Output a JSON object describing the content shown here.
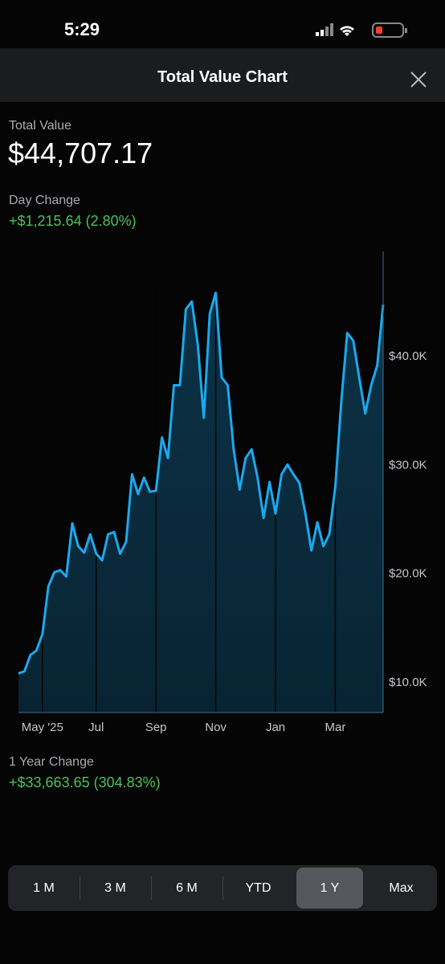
{
  "status_bar": {
    "time": "5:29"
  },
  "header": {
    "title": "Total Value Chart"
  },
  "summary": {
    "total_label": "Total Value",
    "total_value": "$44,707.17",
    "day_label": "Day Change",
    "day_change": "+$1,215.64 (2.80%)"
  },
  "chart_data": {
    "type": "area",
    "color": "#1ba9ee",
    "values": [
      10800,
      11000,
      12500,
      12900,
      14400,
      18800,
      20100,
      20300,
      19700,
      24600,
      22500,
      21900,
      23600,
      21800,
      21200,
      23600,
      23800,
      21800,
      22900,
      29100,
      27300,
      28800,
      27500,
      27600,
      32500,
      30600,
      37300,
      37300,
      44300,
      45000,
      41000,
      34300,
      43900,
      45800,
      38000,
      37300,
      31400,
      27700,
      30600,
      31400,
      28800,
      25100,
      28400,
      25500,
      29100,
      30000,
      29100,
      28300,
      25500,
      22100,
      24700,
      22500,
      23600,
      28000,
      35800,
      42100,
      41400,
      38000,
      34700,
      37300,
      39100,
      44700
    ],
    "xlim": [
      0,
      61
    ],
    "xticks": [
      {
        "value": 4,
        "label": "May '25"
      },
      {
        "value": 13,
        "label": "Jul"
      },
      {
        "value": 23,
        "label": "Sep"
      },
      {
        "value": 33,
        "label": "Nov"
      },
      {
        "value": 43,
        "label": "Jan"
      },
      {
        "value": 53,
        "label": "Mar"
      }
    ],
    "ylim": [
      7200,
      49600
    ],
    "yticks": [
      {
        "value": 10000,
        "label": "$10.0K"
      },
      {
        "value": 20000,
        "label": "$20.0K"
      },
      {
        "value": 30000,
        "label": "$30.0K"
      },
      {
        "value": 40000,
        "label": "$40.0K"
      }
    ]
  },
  "footer": {
    "period_label": "1 Year Change",
    "period_change": "+$33,663.65 (304.83%)"
  },
  "time_ranges": {
    "options": [
      "1 M",
      "3 M",
      "6 M",
      "YTD",
      "1 Y",
      "Max"
    ],
    "selected": 4
  }
}
